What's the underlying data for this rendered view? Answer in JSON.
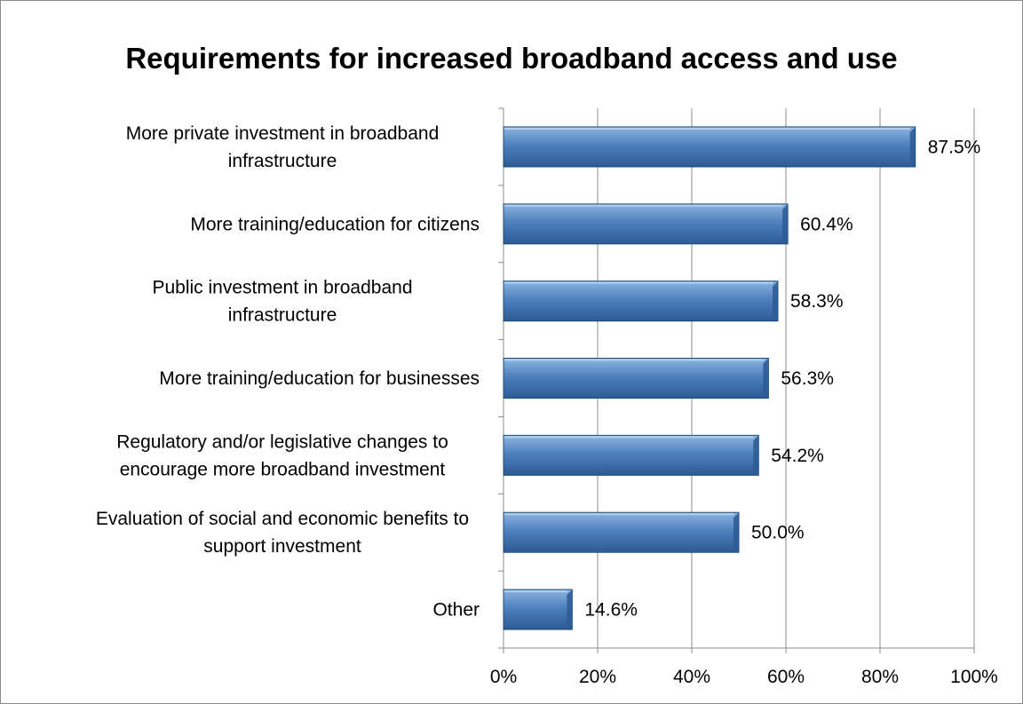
{
  "chart_data": {
    "type": "bar",
    "orientation": "horizontal",
    "title": "Requirements for increased broadband access and use",
    "categories": [
      [
        "More private investment in broadband",
        "infrastructure"
      ],
      [
        "More training/education for citizens"
      ],
      [
        "Public investment in broadband",
        "infrastructure"
      ],
      [
        "More training/education for businesses"
      ],
      [
        "Regulatory and/or legislative changes to",
        "encourage more broadband investment"
      ],
      [
        "Evaluation of social and economic benefits to",
        "support investment"
      ],
      [
        "Other"
      ]
    ],
    "values": [
      87.5,
      60.4,
      58.3,
      56.3,
      54.2,
      50.0,
      14.6
    ],
    "data_labels": [
      "87.5%",
      "60.4%",
      "58.3%",
      "56.3%",
      "54.2%",
      "50.0%",
      "14.6%"
    ],
    "x_ticks": [
      0,
      20,
      40,
      60,
      80,
      100
    ],
    "x_tick_labels": [
      "0%",
      "20%",
      "40%",
      "60%",
      "80%",
      "100%"
    ],
    "xlim": [
      0,
      100
    ],
    "xlabel": "",
    "ylabel": "",
    "grid": "vertical",
    "legend": "none",
    "colors": {
      "bar_light": "#8db4e2",
      "bar_mid": "#4f81bd",
      "bar_dark": "#2c5a94",
      "bar_edge": "#1f4e79",
      "gridline": "#8c8c8c",
      "axis": "#8c8c8c"
    }
  }
}
